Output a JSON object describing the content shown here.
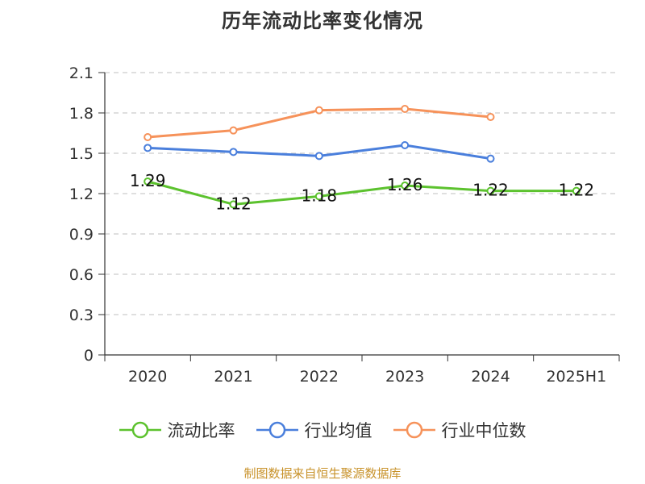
{
  "title": "历年流动比率变化情况",
  "source": "制图数据来自恒生聚源数据库",
  "colors": {
    "axis": "#333333",
    "grid": "#cccccc",
    "series": [
      "#5cc22e",
      "#4a7fdc",
      "#f6925a"
    ]
  },
  "chart_data": {
    "type": "line",
    "title": "历年流动比率变化情况",
    "categories": [
      "2020",
      "2021",
      "2022",
      "2023",
      "2024",
      "2025H1"
    ],
    "yticks": [
      "0",
      "0.3",
      "0.6",
      "0.9",
      "1.2",
      "1.5",
      "1.8",
      "2.1"
    ],
    "ylim": [
      0,
      2.1
    ],
    "grid": true,
    "legend_position": "bottom",
    "series": [
      {
        "name": "流动比率",
        "values": [
          1.29,
          1.12,
          1.18,
          1.26,
          1.22,
          1.22
        ],
        "labels": [
          "1.29",
          "1.12",
          "1.18",
          "1.26",
          "1.22",
          "1.22"
        ],
        "show_labels": true
      },
      {
        "name": "行业均值",
        "values": [
          1.54,
          1.51,
          1.48,
          1.56,
          1.46,
          null
        ],
        "show_labels": false
      },
      {
        "name": "行业中位数",
        "values": [
          1.62,
          1.67,
          1.82,
          1.83,
          1.77,
          null
        ],
        "show_labels": false
      }
    ]
  }
}
